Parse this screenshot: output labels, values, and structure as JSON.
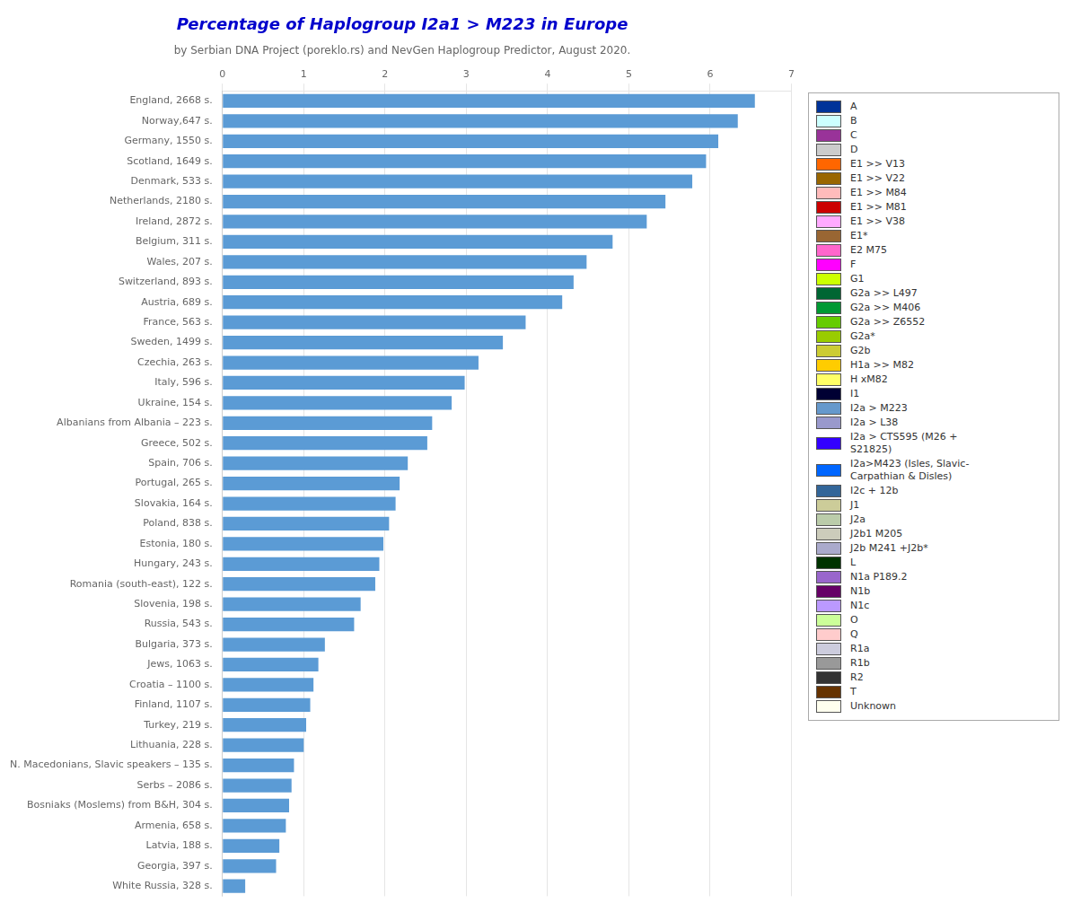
{
  "chart_data": {
    "type": "bar",
    "orientation": "horizontal",
    "title": "Percentage of Haplogroup I2a1 > M223 in Europe",
    "subtitle": "by Serbian DNA Project (poreklo.rs) and NevGen Haplogroup Predictor, August 2020.",
    "color": "#5b9bd5",
    "xlim": [
      0,
      7
    ],
    "xticks": [
      0,
      1,
      2,
      3,
      4,
      5,
      6,
      7
    ],
    "grid": true,
    "categories": [
      "England, 2668 s.",
      "Norway,647 s.",
      "Germany, 1550 s.",
      "Scotland, 1649 s.",
      "Denmark, 533 s.",
      "Netherlands, 2180 s.",
      "Ireland, 2872 s.",
      "Belgium, 311 s.",
      "Wales, 207 s.",
      "Switzerland, 893 s.",
      "Austria, 689 s.",
      "France, 563 s.",
      "Sweden, 1499 s.",
      "Czechia, 263 s.",
      "Italy, 596 s.",
      "Ukraine, 154 s.",
      "Albanians from Albania – 223 s.",
      "Greece, 502 s.",
      "Spain, 706 s.",
      "Portugal, 265 s.",
      "Slovakia, 164 s.",
      "Poland, 838 s.",
      "Estonia, 180 s.",
      "Hungary, 243 s.",
      "Romania (south-east), 122 s.",
      "Slovenia, 198 s.",
      "Russia, 543 s.",
      "Bulgaria, 373 s.",
      "Jews, 1063 s.",
      "Croatia – 1100 s.",
      "Finland, 1107 s.",
      "Turkey, 219 s.",
      "Lithuania, 228 s.",
      "N. Macedonians, Slavic speakers – 135 s.",
      "Serbs – 2086 s.",
      "Bosniaks (Moslems) from B&H, 304 s.",
      "Armenia, 658 s.",
      "Latvia, 188 s.",
      "Georgia, 397 s.",
      "White Russia, 328 s."
    ],
    "values": [
      6.55,
      6.34,
      6.1,
      5.95,
      5.78,
      5.45,
      5.22,
      4.8,
      4.48,
      4.32,
      4.18,
      3.73,
      3.45,
      3.15,
      2.98,
      2.82,
      2.58,
      2.52,
      2.28,
      2.18,
      2.13,
      2.05,
      1.98,
      1.93,
      1.88,
      1.7,
      1.62,
      1.26,
      1.18,
      1.12,
      1.08,
      1.03,
      1.0,
      0.88,
      0.85,
      0.82,
      0.78,
      0.7,
      0.66,
      0.28
    ],
    "legend_entries": [
      {
        "label": "A",
        "color": "#003399"
      },
      {
        "label": "B",
        "color": "#ccffff"
      },
      {
        "label": "C",
        "color": "#993399"
      },
      {
        "label": "D",
        "color": "#cccccc"
      },
      {
        "label": "E1 >> V13",
        "color": "#ff6600"
      },
      {
        "label": "E1 >> V22",
        "color": "#996600"
      },
      {
        "label": "E1 >> M84",
        "color": "#ffbbbb"
      },
      {
        "label": "E1 >> M81",
        "color": "#cc0000"
      },
      {
        "label": "E1 >> V38",
        "color": "#ffaaff"
      },
      {
        "label": "E1*",
        "color": "#996633"
      },
      {
        "label": "E2 M75",
        "color": "#ff66cc"
      },
      {
        "label": "F",
        "color": "#ff00ff"
      },
      {
        "label": "G1",
        "color": "#ccff00"
      },
      {
        "label": "G2a >> L497",
        "color": "#006633"
      },
      {
        "label": "G2a >> M406",
        "color": "#009933"
      },
      {
        "label": "G2a >> Z6552",
        "color": "#66cc00"
      },
      {
        "label": "G2a*",
        "color": "#99cc00"
      },
      {
        "label": "G2b",
        "color": "#cccc33"
      },
      {
        "label": "H1a >> M82",
        "color": "#ffcc00"
      },
      {
        "label": "H xM82",
        "color": "#ffff66"
      },
      {
        "label": "I1",
        "color": "#000033"
      },
      {
        "label": "I2a > M223",
        "color": "#6699cc"
      },
      {
        "label": "I2a > L38",
        "color": "#9999cc"
      },
      {
        "label": "I2a > CTS595 (M26 +\nS21825)",
        "color": "#3300ff"
      },
      {
        "label": "I2a>M423 (Isles, Slavic-\nCarpathian & Disles)",
        "color": "#0066ff"
      },
      {
        "label": "I2c + 12b",
        "color": "#336699"
      },
      {
        "label": "J1",
        "color": "#cccc99"
      },
      {
        "label": "J2a",
        "color": "#bbccaa"
      },
      {
        "label": "J2b1 M205",
        "color": "#ccccbb"
      },
      {
        "label": "J2b M241 +J2b*",
        "color": "#aaaacc"
      },
      {
        "label": "L",
        "color": "#003300"
      },
      {
        "label": "N1a P189.2",
        "color": "#9966cc"
      },
      {
        "label": "N1b",
        "color": "#660066"
      },
      {
        "label": "N1c",
        "color": "#bb99ff"
      },
      {
        "label": "O",
        "color": "#ccff99"
      },
      {
        "label": "Q",
        "color": "#ffcccc"
      },
      {
        "label": "R1a",
        "color": "#ccccdd"
      },
      {
        "label": "R1b",
        "color": "#999999"
      },
      {
        "label": "R2",
        "color": "#333333"
      },
      {
        "label": "T",
        "color": "#663300"
      },
      {
        "label": "Unknown",
        "color": "#ffffee"
      }
    ]
  }
}
